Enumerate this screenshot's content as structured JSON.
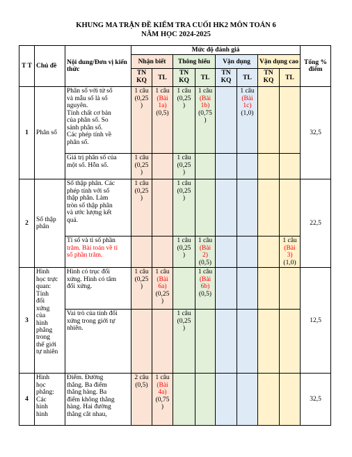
{
  "title_line1": "KHUNG MA TRẬN ĐỀ KIỂM TRA CUỐI HK2 MÔN TOÁN 6",
  "title_line2": "NĂM HỌC 2024-2025",
  "header": {
    "tt": "T T",
    "chu_de": "Chủ đề",
    "noi_dung": "Nội dung/Đơn vị kiến thức",
    "muc_do": "Mức độ đánh giá",
    "tong": "Tổng % điểm",
    "nhan_biet": "Nhận biết",
    "thong_hieu": "Thông hiểu",
    "van_dung": "Vận dụng",
    "van_dung_cao": "Vận dụng cao",
    "tn": "TN KQ",
    "tl": "TL"
  },
  "topics": [
    {
      "tt": "1",
      "chu_de": [
        "Phân số"
      ],
      "tong": "32,5",
      "rows": [
        {
          "noi_dung": [
            "Phân số với tử số",
            "và mẫu số là số",
            "nguyên.",
            "Tính chất cơ bản",
            "của phân số. So",
            "sánh phân số.",
            "Các phép tính về",
            "phân số."
          ],
          "nb_tn": [
            "1 câu",
            "(0,25",
            ")"
          ],
          "nb_tl": [
            "1 câu",
            "(Bài",
            "1a)",
            "(0,5)"
          ],
          "th_tn": [
            "1 câu",
            "(0,25",
            ")"
          ],
          "th_tl": [
            "1 câu",
            "(Bài",
            "1b)",
            "(0,75",
            ")"
          ],
          "vd_tn": [],
          "vd_tl": [
            "1 câu",
            "(Bài",
            "1c)",
            "(1,0)"
          ],
          "vdc_tn": [],
          "vdc_tl": []
        },
        {
          "noi_dung": [
            "Giá trị phân số của",
            "một số. Hỗn số."
          ],
          "nb_tn": [
            "1 câu",
            "(0,25",
            ")"
          ],
          "nb_tl": [],
          "th_tn": [
            "1 câu",
            "(0,25",
            ")"
          ],
          "th_tl": [],
          "vd_tn": [],
          "vd_tl": [],
          "vdc_tn": [],
          "vdc_tl": []
        }
      ]
    },
    {
      "tt": "2",
      "chu_de": [
        "Số thập",
        "phân"
      ],
      "tong": "22,5",
      "rows": [
        {
          "noi_dung": [
            "Số thập phân. Các",
            "phép tính với số",
            "thập phân. Làm",
            "tròn số thập phân",
            "và ước lượng kết",
            "quả."
          ],
          "nb_tn": [
            "1 câu",
            "(0,25",
            ")"
          ],
          "nb_tl": [],
          "th_tn": [
            "1 câu",
            "(0,25",
            ")"
          ],
          "th_tl": [],
          "vd_tn": [],
          "vd_tl": [],
          "vdc_tn": [],
          "vdc_tl": []
        },
        {
          "noi_dung": [
            "Tỉ số và tỉ số phần",
            "trăm. Bài toán về tỉ",
            "số phần trăm."
          ],
          "nb_tn": [],
          "nb_tl": [],
          "th_tn": [
            "1 câu",
            "(0,25",
            ")"
          ],
          "th_tl": [
            "1 câu",
            "(Bài",
            "2)",
            "(0,5)"
          ],
          "vd_tn": [],
          "vd_tl": [],
          "vdc_tn": [],
          "vdc_tl": [
            "1 câu",
            "(Bài",
            "3)",
            "(1,0)"
          ]
        }
      ]
    },
    {
      "tt": "3",
      "chu_de": [
        "Hình",
        "học trực",
        "quan:",
        "Tính",
        "đối",
        "xứng",
        "của",
        "hình",
        "phẳng",
        "trong",
        "thế giới",
        "tự nhiên"
      ],
      "tong": "12,5",
      "rows": [
        {
          "noi_dung": [
            "Hình có trục đối",
            "xứng. Hình có tâm",
            "đối xứng."
          ],
          "nb_tn": [
            "1 câu",
            "(0,25",
            ")"
          ],
          "nb_tl": [
            "1 câu",
            "(Bài",
            "6a)",
            "(0,25",
            ")"
          ],
          "th_tn": [],
          "th_tl": [
            "1 câu",
            "(Bài",
            "6b)",
            "(0,5)"
          ],
          "vd_tn": [],
          "vd_tl": [],
          "vdc_tn": [],
          "vdc_tl": []
        },
        {
          "noi_dung": [
            "Vai trò của tính đối",
            "xứng trong giới tự",
            "nhiên."
          ],
          "nb_tn": [],
          "nb_tl": [],
          "th_tn": [
            "1 câu",
            "(0,25",
            ")"
          ],
          "th_tl": [],
          "vd_tn": [],
          "vd_tl": [],
          "vdc_tn": [],
          "vdc_tl": []
        }
      ]
    },
    {
      "tt": "4",
      "chu_de": [
        "Hình",
        "học",
        "phẳng:",
        "Các",
        "hình",
        "hình"
      ],
      "tong": "32,5",
      "rows": [
        {
          "noi_dung": [
            "Điểm. Đường",
            "thẳng. Ba điểm",
            "thẳng hàng. Ba",
            "điểm không thẳng",
            "hàng. Hai đường",
            "thẳng cắt nhau,"
          ],
          "nb_tn": [
            "2 câu",
            "(0,5)"
          ],
          "nb_tl": [
            "1 câu",
            "(Bài",
            "4a)",
            "(0,75",
            ")"
          ],
          "th_tn": [],
          "th_tl": [],
          "vd_tn": [],
          "vd_tl": [],
          "vdc_tn": [],
          "vdc_tl": []
        }
      ]
    }
  ]
}
